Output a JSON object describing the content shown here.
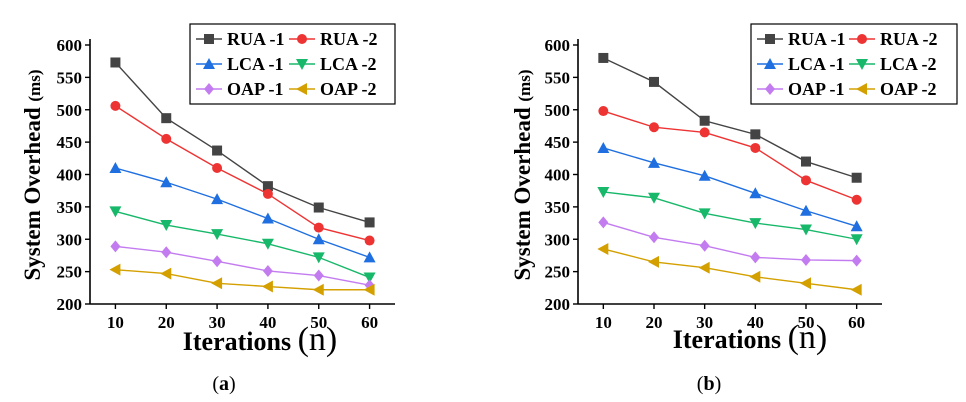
{
  "chart_data": [
    {
      "type": "line",
      "panel": "a",
      "caption": {
        "open": "(",
        "letter": "a",
        "close": ")"
      },
      "ylabel": "System Overhead",
      "yunit": "(ms)",
      "xlabel": "Iterations",
      "xunit": "(n)",
      "x": [
        10,
        20,
        30,
        40,
        50,
        60
      ],
      "xlim": [
        5,
        65
      ],
      "ylim": [
        200,
        600
      ],
      "yticks": [
        200,
        250,
        300,
        350,
        400,
        450,
        500,
        550,
        600
      ],
      "legend_position": "top-right",
      "series": [
        {
          "name": "RUA -1",
          "color": "#444444",
          "marker": "square",
          "values": [
            573,
            487,
            437,
            382,
            349,
            326
          ]
        },
        {
          "name": "RUA -2",
          "color": "#ee3333",
          "marker": "circle",
          "values": [
            506,
            455,
            410,
            370,
            318,
            298
          ]
        },
        {
          "name": "LCA -1",
          "color": "#1f6fe0",
          "marker": "triangle-up",
          "values": [
            410,
            388,
            362,
            332,
            300,
            272
          ]
        },
        {
          "name": "LCA -2",
          "color": "#18b86a",
          "marker": "triangle-down",
          "values": [
            343,
            322,
            308,
            293,
            272,
            241
          ]
        },
        {
          "name": "OAP -1",
          "color": "#c37cf0",
          "marker": "diamond",
          "values": [
            289,
            280,
            266,
            251,
            244,
            229
          ]
        },
        {
          "name": "OAP -2",
          "color": "#d4a000",
          "marker": "triangle-left",
          "values": [
            253,
            247,
            232,
            227,
            222,
            222
          ]
        }
      ]
    },
    {
      "type": "line",
      "panel": "b",
      "caption": {
        "open": "(",
        "letter": "b",
        "close": ")"
      },
      "ylabel": "System Overhead",
      "yunit": "(ms)",
      "xlabel": "Iterations",
      "xunit": "(n)",
      "x": [
        10,
        20,
        30,
        40,
        50,
        60
      ],
      "xlim": [
        5,
        65
      ],
      "ylim": [
        200,
        600
      ],
      "yticks": [
        200,
        250,
        300,
        350,
        400,
        450,
        500,
        550,
        600
      ],
      "legend_position": "top-right",
      "series": [
        {
          "name": "RUA -1",
          "color": "#444444",
          "marker": "square",
          "values": [
            580,
            543,
            483,
            462,
            420,
            395
          ]
        },
        {
          "name": "RUA -2",
          "color": "#ee3333",
          "marker": "circle",
          "values": [
            498,
            473,
            465,
            441,
            391,
            361
          ]
        },
        {
          "name": "LCA -1",
          "color": "#1f6fe0",
          "marker": "triangle-up",
          "values": [
            441,
            418,
            398,
            371,
            344,
            320
          ]
        },
        {
          "name": "LCA -2",
          "color": "#18b86a",
          "marker": "triangle-down",
          "values": [
            373,
            364,
            340,
            325,
            315,
            300
          ]
        },
        {
          "name": "OAP -1",
          "color": "#c37cf0",
          "marker": "diamond",
          "values": [
            326,
            303,
            290,
            272,
            268,
            267
          ]
        },
        {
          "name": "OAP -2",
          "color": "#d4a000",
          "marker": "triangle-left",
          "values": [
            285,
            265,
            256,
            242,
            232,
            222
          ]
        }
      ]
    }
  ]
}
